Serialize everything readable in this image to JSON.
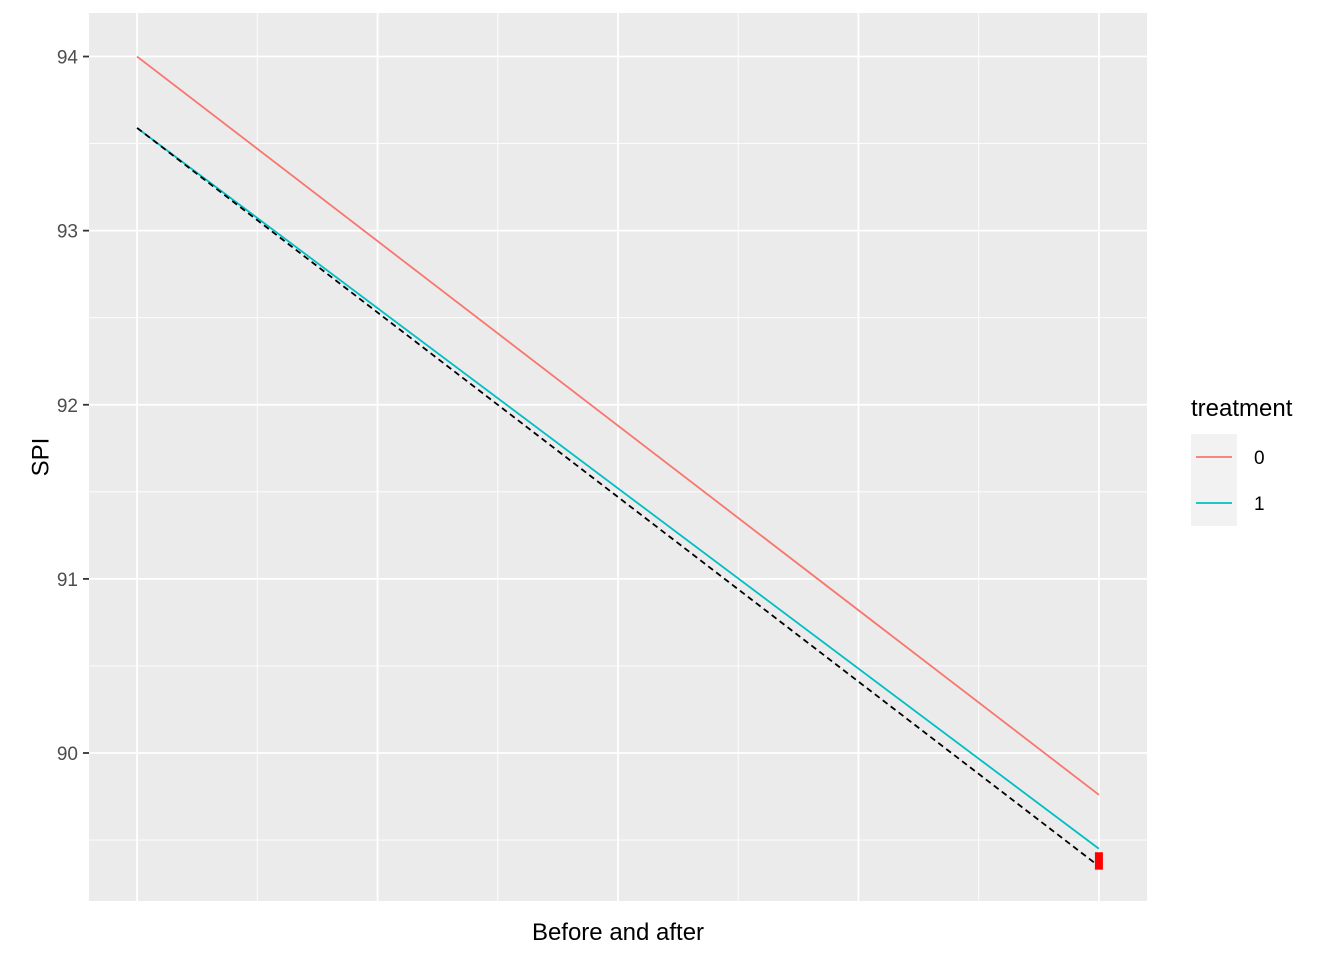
{
  "chart_data": {
    "type": "line",
    "xlabel": "Before and after",
    "ylabel": "SPI",
    "x": [
      0,
      1
    ],
    "xlim": [
      -0.05,
      1.05
    ],
    "ylim": [
      89.15,
      94.25
    ],
    "y_ticks": [
      90,
      91,
      92,
      93,
      94
    ],
    "y_tick_labels": [
      "90",
      "91",
      "92",
      "93",
      "94"
    ],
    "grid": true,
    "legend": {
      "title": "treatment",
      "placement": "right"
    },
    "series": [
      {
        "name": "0",
        "color": "#F8766D",
        "values": [
          94.0,
          89.76
        ]
      },
      {
        "name": "1",
        "color": "#00BFC4",
        "values": [
          93.59,
          89.45
        ]
      }
    ],
    "counterfactual": {
      "color": "#000000",
      "style": "dashed",
      "values": [
        93.59,
        89.35
      ]
    },
    "effect_marker": {
      "color": "#FF0000",
      "from": 89.33,
      "to": 89.43
    },
    "panel_background": "#EBEBEB",
    "grid_color": "#FFFFFF"
  }
}
